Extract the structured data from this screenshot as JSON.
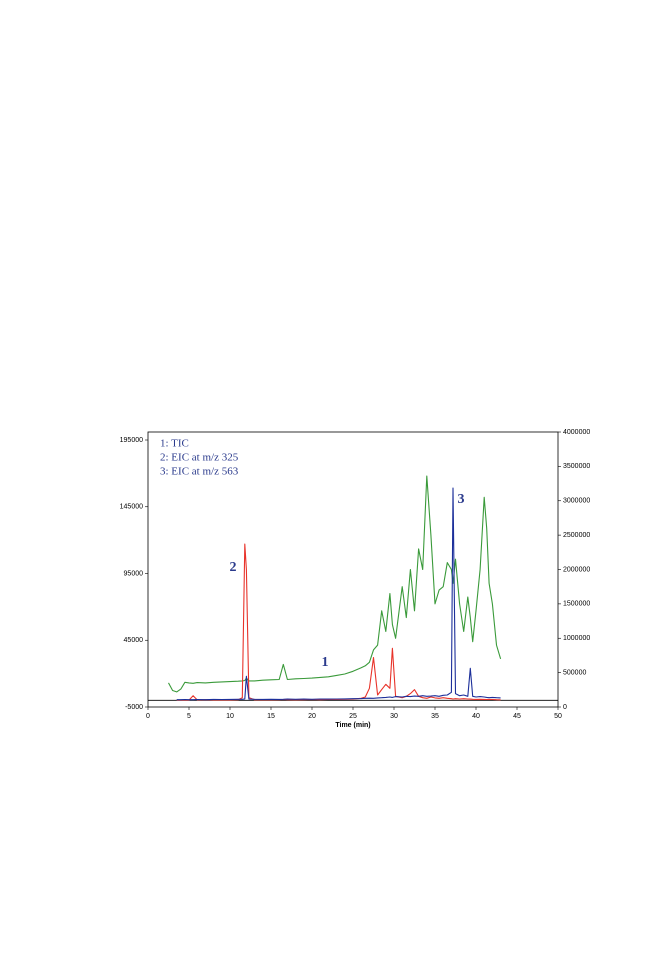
{
  "chart_data": {
    "type": "line",
    "x_label": "Time (min)",
    "x": [
      2.5,
      3,
      3.5,
      4,
      4.5,
      5,
      5.5,
      6,
      7,
      8,
      9,
      10,
      11,
      11.5,
      11.8,
      12,
      12.3,
      13,
      14,
      15,
      16,
      16.5,
      17,
      18,
      19,
      20,
      21,
      22,
      23,
      24,
      25,
      26,
      26.5,
      27,
      27.5,
      28,
      28.5,
      29,
      29.5,
      29.8,
      30.2,
      31,
      31.5,
      32,
      32.5,
      33,
      33.5,
      34,
      34.5,
      35,
      35.5,
      36,
      36.5,
      37,
      37.2,
      37.5,
      38,
      38.5,
      39,
      39.3,
      39.6,
      40,
      40.5,
      41,
      41.3,
      41.6,
      42,
      42.5,
      43
    ],
    "series": [
      {
        "name": "1: TIC",
        "color": "#3a9a3a",
        "axis": "y2",
        "values": [
          350000,
          240000,
          220000,
          260000,
          360000,
          350000,
          345000,
          355000,
          350000,
          360000,
          365000,
          370000,
          375000,
          380000,
          385000,
          420000,
          380000,
          380000,
          390000,
          395000,
          400000,
          620000,
          400000,
          410000,
          415000,
          420000,
          430000,
          440000,
          460000,
          480000,
          520000,
          570000,
          600000,
          650000,
          830000,
          900000,
          1400000,
          1100000,
          1650000,
          1200000,
          1000000,
          1750000,
          1300000,
          2000000,
          1400000,
          2300000,
          2000000,
          3360000,
          2500000,
          1500000,
          1700000,
          1750000,
          2100000,
          2000000,
          1800000,
          2150000,
          1500000,
          1100000,
          1600000,
          1300000,
          950000,
          1400000,
          2000000,
          3050000,
          2600000,
          1800000,
          1500000,
          900000,
          700000
        ]
      },
      {
        "name": "2: EIC at m/z 325",
        "color": "#e8332a",
        "values": [
          null,
          null,
          200,
          200,
          300,
          200,
          3500,
          300,
          500,
          300,
          400,
          300,
          500,
          2000,
          117000,
          98000,
          2000,
          400,
          500,
          400,
          500,
          600,
          500,
          400,
          500,
          600,
          500,
          600,
          700,
          800,
          900,
          1500,
          2500,
          9000,
          32000,
          4000,
          8000,
          12000,
          9000,
          39000,
          3000,
          2000,
          3000,
          5000,
          8000,
          3000,
          2000,
          1500,
          2500,
          1800,
          1500,
          2000,
          1500,
          1200,
          1000,
          1200,
          1000,
          1200,
          1000,
          900,
          800,
          700,
          800,
          700,
          600,
          700,
          600,
          500,
          400
        ]
      },
      {
        "name": "3: EIC at m/z 563",
        "color": "#1c2f9a",
        "values": [
          null,
          null,
          500,
          500,
          600,
          500,
          500,
          600,
          500,
          700,
          600,
          700,
          800,
          800,
          1000,
          18000,
          900,
          800,
          700,
          800,
          700,
          800,
          900,
          800,
          900,
          800,
          1000,
          900,
          1000,
          1100,
          1200,
          1300,
          1500,
          1600,
          1500,
          1800,
          2000,
          2200,
          2500,
          2200,
          2800,
          2500,
          3000,
          2800,
          3200,
          3000,
          3500,
          3000,
          3200,
          3500,
          3000,
          3800,
          4000,
          6000,
          159000,
          5000,
          3500,
          4000,
          3000,
          24000,
          3000,
          2500,
          2800,
          2500,
          2200,
          2000,
          2200,
          2000,
          1800
        ]
      }
    ],
    "annotations": [
      "1",
      "2",
      "3"
    ],
    "xlim": [
      0,
      50
    ],
    "xticks": [
      0,
      5,
      10,
      15,
      20,
      25,
      30,
      35,
      40,
      45,
      50
    ],
    "ylim": [
      -5000,
      195000
    ],
    "yticks": [
      -5000,
      45000,
      95000,
      145000,
      195000
    ],
    "y2lim": [
      0,
      4000000
    ],
    "y2ticks": [
      0,
      500000,
      1000000,
      1500000,
      2000000,
      2500000,
      3000000,
      3500000,
      4000000
    ]
  }
}
